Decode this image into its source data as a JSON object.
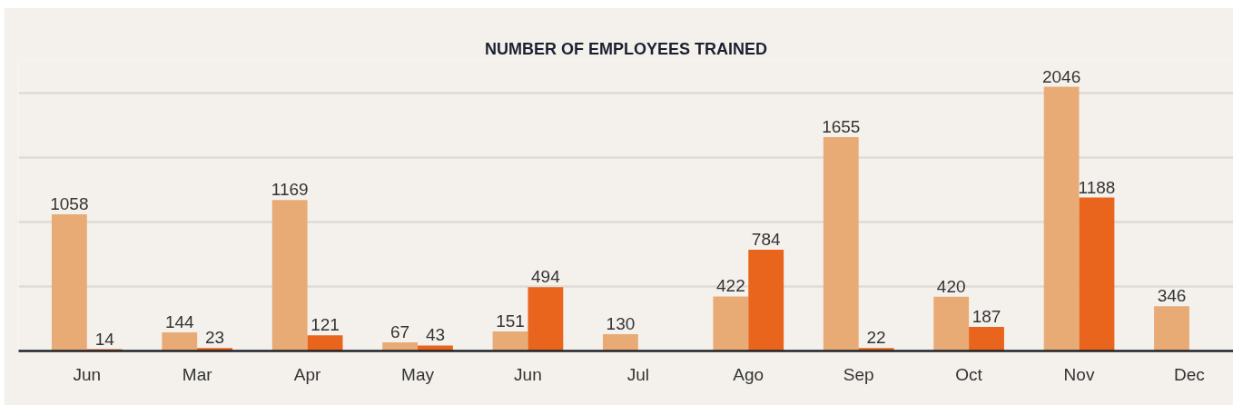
{
  "chart_data": {
    "type": "bar",
    "title": "NUMBER OF EMPLOYEES TRAINED",
    "categories": [
      "Jun",
      "Mar",
      "Apr",
      "May",
      "Jun",
      "Jul",
      "Ago",
      "Sep",
      "Oct",
      "Nov",
      "Dec"
    ],
    "series": [
      {
        "color": "#e9ab76",
        "values": [
          1058,
          144,
          1169,
          67,
          151,
          130,
          422,
          1655,
          420,
          2046,
          346
        ]
      },
      {
        "color": "#e9641c",
        "values": [
          14,
          23,
          121,
          43,
          494,
          null,
          784,
          22,
          187,
          1188,
          null
        ]
      }
    ],
    "ylim": [
      0,
      2250
    ],
    "yticks": [
      {
        "value": 500,
        "label": null
      },
      {
        "value": 1000,
        "label": null
      },
      {
        "value": 1500,
        "label": null
      },
      {
        "value": 2000,
        "label": null
      }
    ],
    "grid": "y",
    "tick_labels": "x",
    "data_labels": true
  }
}
